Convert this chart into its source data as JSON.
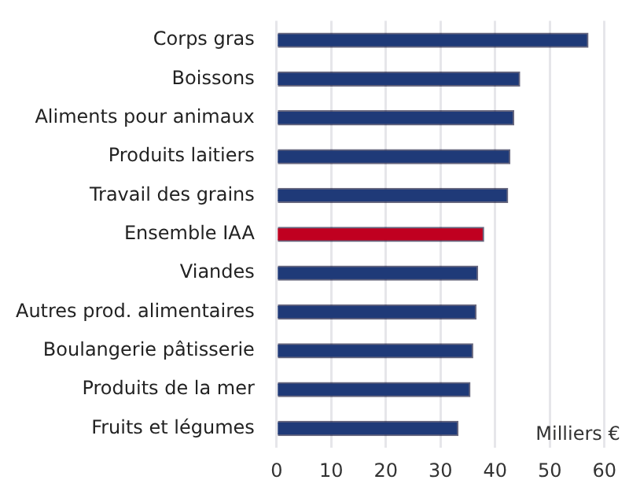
{
  "chart_data": {
    "type": "bar",
    "orientation": "horizontal",
    "xlabel": "Milliers €",
    "categories": [
      "Corps gras",
      "Boissons",
      "Aliments pour animaux",
      "Produits laitiers",
      "Travail des grains",
      "Ensemble IAA",
      "Viandes",
      "Autres prod. alimentaires",
      "Boulangerie pâtisserie",
      "Produits de la mer",
      "Fruits et légumes"
    ],
    "values": [
      57.0,
      44.5,
      43.4,
      42.7,
      42.3,
      37.9,
      36.8,
      36.5,
      35.9,
      35.4,
      33.2
    ],
    "colors": [
      "#1f3a78",
      "#1f3a78",
      "#1f3a78",
      "#1f3a78",
      "#1f3a78",
      "#c00020",
      "#1f3a78",
      "#1f3a78",
      "#1f3a78",
      "#1f3a78",
      "#1f3a78"
    ],
    "xlim": [
      0,
      60
    ],
    "xticks": [
      0,
      10,
      20,
      30,
      40,
      50,
      60
    ],
    "grid": "x",
    "legend": false
  }
}
